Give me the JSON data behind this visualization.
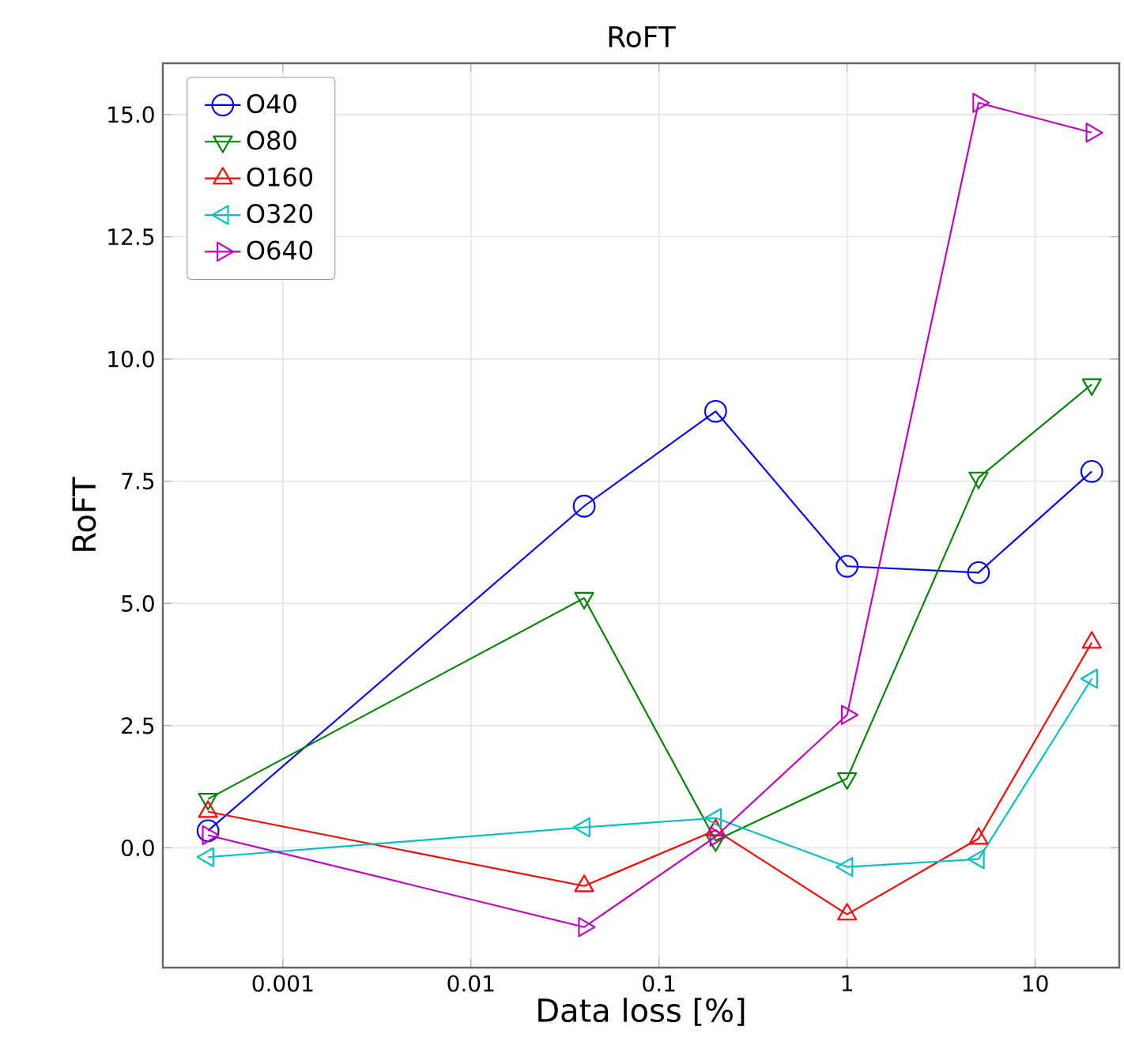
{
  "chart_data": {
    "type": "line",
    "title": "RoFT",
    "xlabel": "Data loss [%]",
    "ylabel": "RoFT",
    "log": "x",
    "x": [
      0.0004,
      0.04,
      0.2,
      1,
      5,
      20
    ],
    "series": [
      {
        "name": "O40",
        "color": "#0000ff",
        "marker": "circle",
        "values": [
          0.35,
          6.99,
          8.93,
          5.76,
          5.63,
          7.7
        ]
      },
      {
        "name": "O80",
        "color": "#008000",
        "marker": "triangle-down",
        "values": [
          1.0,
          5.11,
          0.15,
          1.42,
          7.57,
          9.48
        ]
      },
      {
        "name": "O160",
        "color": "#ff0000",
        "marker": "triangle",
        "values": [
          0.74,
          -0.78,
          0.36,
          -1.36,
          0.19,
          4.2
        ]
      },
      {
        "name": "O320",
        "color": "#00bfbf",
        "marker": "triangle-left",
        "values": [
          -0.19,
          0.42,
          0.61,
          -0.39,
          -0.23,
          3.46
        ]
      },
      {
        "name": "O640",
        "color": "#bf00bf",
        "marker": "triangle-right",
        "values": [
          0.26,
          -1.62,
          0.23,
          2.72,
          15.24,
          14.63
        ]
      }
    ],
    "xlim": [
      0.00023,
      28
    ],
    "xticks": [
      0.001,
      0.01,
      0.1,
      1,
      10
    ],
    "ylim": [
      -2.45,
      16.05
    ],
    "yticks": [
      {
        "value": 0,
        "label": "0.0"
      },
      {
        "value": 2.5,
        "label": "2.5"
      },
      {
        "value": 5,
        "label": "5.0"
      },
      {
        "value": 7.5,
        "label": "7.5"
      },
      {
        "value": 10,
        "label": "10.0"
      },
      {
        "value": 12.5,
        "label": "12.5"
      },
      {
        "value": 15,
        "label": "15.0"
      }
    ],
    "grid": true,
    "legend": "top left",
    "line_style": "solid"
  }
}
